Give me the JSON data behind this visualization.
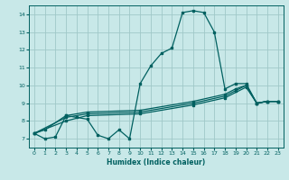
{
  "xlabel": "Humidex (Indice chaleur)",
  "bg_color": "#c8e8e8",
  "grid_color": "#a0c8c8",
  "line_color": "#006060",
  "xlim": [
    -0.5,
    23.5
  ],
  "ylim": [
    6.5,
    14.5
  ],
  "yticks": [
    7,
    8,
    9,
    10,
    11,
    12,
    13,
    14
  ],
  "xticks": [
    0,
    1,
    2,
    3,
    4,
    5,
    6,
    7,
    8,
    9,
    10,
    11,
    12,
    13,
    14,
    15,
    16,
    17,
    18,
    19,
    20,
    21,
    22,
    23
  ],
  "line_main": [
    [
      0,
      7.3
    ],
    [
      1,
      7.0
    ],
    [
      2,
      7.1
    ],
    [
      3,
      8.3
    ],
    [
      4,
      8.2
    ],
    [
      5,
      8.1
    ],
    [
      6,
      7.2
    ],
    [
      7,
      7.0
    ],
    [
      8,
      7.5
    ],
    [
      9,
      7.0
    ],
    [
      10,
      10.1
    ],
    [
      11,
      11.1
    ],
    [
      12,
      11.8
    ],
    [
      13,
      12.1
    ],
    [
      14,
      14.1
    ],
    [
      15,
      14.2
    ],
    [
      16,
      14.1
    ],
    [
      17,
      13.0
    ],
    [
      18,
      9.8
    ],
    [
      19,
      10.1
    ],
    [
      20,
      10.1
    ],
    [
      21,
      9.0
    ],
    [
      22,
      9.1
    ],
    [
      23,
      9.1
    ]
  ],
  "line2": [
    [
      0,
      7.3
    ],
    [
      1,
      7.5
    ],
    [
      3,
      8.3
    ],
    [
      5,
      8.5
    ],
    [
      10,
      8.6
    ],
    [
      15,
      9.1
    ],
    [
      18,
      9.5
    ],
    [
      19,
      9.8
    ],
    [
      20,
      10.0
    ],
    [
      21,
      9.0
    ],
    [
      22,
      9.1
    ],
    [
      23,
      9.1
    ]
  ],
  "line3": [
    [
      0,
      7.3
    ],
    [
      3,
      8.2
    ],
    [
      5,
      8.4
    ],
    [
      10,
      8.5
    ],
    [
      15,
      9.0
    ],
    [
      18,
      9.4
    ],
    [
      19,
      9.7
    ],
    [
      20,
      10.0
    ],
    [
      21,
      9.0
    ],
    [
      22,
      9.1
    ],
    [
      23,
      9.1
    ]
  ],
  "line4": [
    [
      0,
      7.3
    ],
    [
      3,
      8.0
    ],
    [
      5,
      8.3
    ],
    [
      10,
      8.4
    ],
    [
      15,
      8.9
    ],
    [
      18,
      9.3
    ],
    [
      20,
      9.9
    ],
    [
      21,
      9.0
    ],
    [
      22,
      9.1
    ],
    [
      23,
      9.1
    ]
  ]
}
